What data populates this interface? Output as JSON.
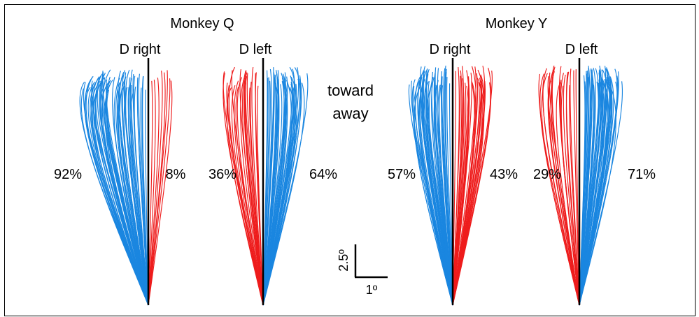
{
  "monkeys": [
    {
      "title": "Monkey Q",
      "panels": [
        {
          "label": "D right",
          "left_pct": "92%",
          "right_pct": "8%",
          "left_color": "#1a86e0",
          "right_color": "#ee1c1c"
        },
        {
          "label": "D left",
          "left_pct": "36%",
          "right_pct": "64%",
          "left_color": "#ee1c1c",
          "right_color": "#1a86e0"
        }
      ]
    },
    {
      "title": "Monkey Y",
      "panels": [
        {
          "label": "D right",
          "left_pct": "57%",
          "right_pct": "43%",
          "left_color": "#1a86e0",
          "right_color": "#ee1c1c"
        },
        {
          "label": "D left",
          "left_pct": "29%",
          "right_pct": "71%",
          "left_color": "#ee1c1c",
          "right_color": "#1a86e0"
        }
      ]
    }
  ],
  "legend": {
    "toward": "toward",
    "away": "away",
    "toward_color": "#ee1c1c",
    "away_color": "#1a86e0"
  },
  "scale_bar": {
    "vertical_label": "2.5º",
    "horizontal_label": "1º"
  },
  "colors": {
    "axis": "#000000",
    "border": "#000000"
  }
}
